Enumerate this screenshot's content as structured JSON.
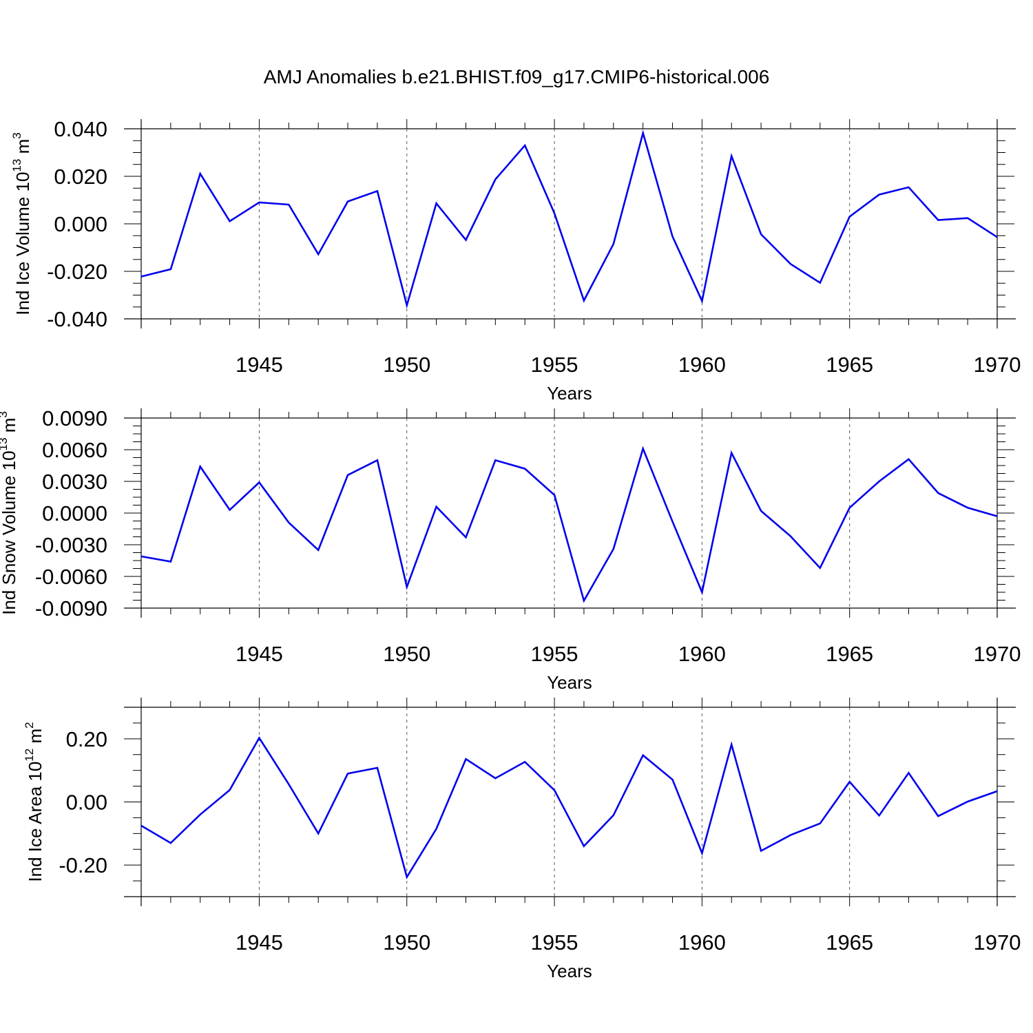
{
  "figure": {
    "title": "AMJ Anomalies b.e21.BHIST.f09_g17.CMIP6-historical.006"
  },
  "chart_data": [
    {
      "type": "line",
      "xlabel": "Years",
      "ylabel": "Ind Ice Volume 10",
      "ylabel_sup": "13",
      "ylabel_unit": " m",
      "ylabel_unit_sup": "3",
      "xlim": [
        1941,
        1970
      ],
      "ylim": [
        -0.04,
        0.04
      ],
      "yticks": [
        -0.04,
        -0.02,
        0,
        0.02,
        0.04
      ],
      "yticklabels": [
        "-0.040",
        "-0.020",
        "0.000",
        "0.020",
        "0.040"
      ],
      "xticks": [
        1945,
        1950,
        1955,
        1960,
        1965,
        1970
      ],
      "xticklabels": [
        "1945",
        "1950",
        "1955",
        "1960",
        "1965",
        "1970"
      ],
      "x": [
        1941,
        1942,
        1943,
        1944,
        1945,
        1946,
        1947,
        1948,
        1949,
        1950,
        1951,
        1952,
        1953,
        1954,
        1955,
        1956,
        1957,
        1958,
        1959,
        1960,
        1961,
        1962,
        1963,
        1964,
        1965,
        1966,
        1967,
        1968,
        1969,
        1970
      ],
      "series": [
        {
          "color": "#0000ee",
          "values": [
            -0.0222,
            -0.0191,
            0.0211,
            0.0011,
            0.009,
            0.0081,
            -0.0128,
            0.0094,
            0.0138,
            -0.0343,
            0.0086,
            -0.0068,
            0.0187,
            0.033,
            0.0044,
            -0.0323,
            -0.0085,
            0.0382,
            -0.0053,
            -0.0325,
            0.0285,
            -0.0044,
            -0.0169,
            -0.0248,
            0.003,
            0.0123,
            0.0154,
            0.0016,
            0.0024,
            -0.0056
          ]
        }
      ],
      "grid": "dashed vertical at x ticks"
    },
    {
      "type": "line",
      "xlabel": "Years",
      "ylabel": "Ind Snow Volume 10",
      "ylabel_sup": "13",
      "ylabel_unit": " m",
      "ylabel_unit_sup": "3",
      "xlim": [
        1941,
        1970
      ],
      "ylim": [
        -0.009,
        0.009
      ],
      "yticks": [
        -0.009,
        -0.006,
        -0.003,
        0,
        0.003,
        0.006,
        0.009
      ],
      "yticklabels": [
        "-0.0090",
        "-0.0060",
        "-0.0030",
        "0.0000",
        "0.0030",
        "0.0060",
        "0.0090"
      ],
      "xticks": [
        1945,
        1950,
        1955,
        1960,
        1965,
        1970
      ],
      "xticklabels": [
        "1945",
        "1950",
        "1955",
        "1960",
        "1965",
        "1970"
      ],
      "x": [
        1941,
        1942,
        1943,
        1944,
        1945,
        1946,
        1947,
        1948,
        1949,
        1950,
        1951,
        1952,
        1953,
        1954,
        1955,
        1956,
        1957,
        1958,
        1959,
        1960,
        1961,
        1962,
        1963,
        1964,
        1965,
        1966,
        1967,
        1968,
        1969,
        1970
      ],
      "series": [
        {
          "color": "#0000ee",
          "values": [
            -0.0041,
            -0.0046,
            0.0044,
            0.0003,
            0.0029,
            -0.0009,
            -0.0035,
            0.0036,
            0.005,
            -0.007,
            0.0006,
            -0.0023,
            0.005,
            0.0042,
            0.0017,
            -0.0083,
            -0.0034,
            0.0061,
            -0.0008,
            -0.0075,
            0.0057,
            0.0002,
            -0.0022,
            -0.0052,
            0.0005,
            0.003,
            0.0051,
            0.0019,
            0.0005,
            -0.0003
          ]
        }
      ],
      "grid": "dashed vertical at x ticks"
    },
    {
      "type": "line",
      "xlabel": "Years",
      "ylabel": "Ind Ice Area 10",
      "ylabel_sup": "12",
      "ylabel_unit": " m",
      "ylabel_unit_sup": "2",
      "xlim": [
        1941,
        1970
      ],
      "ylim": [
        -0.3,
        0.3
      ],
      "yticks": [
        -0.2,
        0,
        0.2
      ],
      "yticklabels": [
        "-0.20",
        "0.00",
        "0.20"
      ],
      "xticks": [
        1945,
        1950,
        1955,
        1960,
        1965,
        1970
      ],
      "xticklabels": [
        "1945",
        "1950",
        "1955",
        "1960",
        "1965",
        "1970"
      ],
      "x": [
        1941,
        1942,
        1943,
        1944,
        1945,
        1946,
        1947,
        1948,
        1949,
        1950,
        1951,
        1952,
        1953,
        1954,
        1955,
        1956,
        1957,
        1958,
        1959,
        1960,
        1961,
        1962,
        1963,
        1964,
        1965,
        1966,
        1967,
        1968,
        1969,
        1970
      ],
      "series": [
        {
          "color": "#0000ee",
          "values": [
            -0.075,
            -0.13,
            -0.04,
            0.038,
            0.203,
            0.056,
            -0.1,
            0.09,
            0.108,
            -0.238,
            -0.085,
            0.136,
            0.075,
            0.127,
            0.037,
            -0.14,
            -0.042,
            0.148,
            0.071,
            -0.162,
            0.182,
            -0.155,
            -0.105,
            -0.068,
            0.064,
            -0.043,
            0.092,
            -0.045,
            0.001,
            0.034
          ]
        }
      ],
      "grid": "dashed vertical at x ticks"
    }
  ]
}
